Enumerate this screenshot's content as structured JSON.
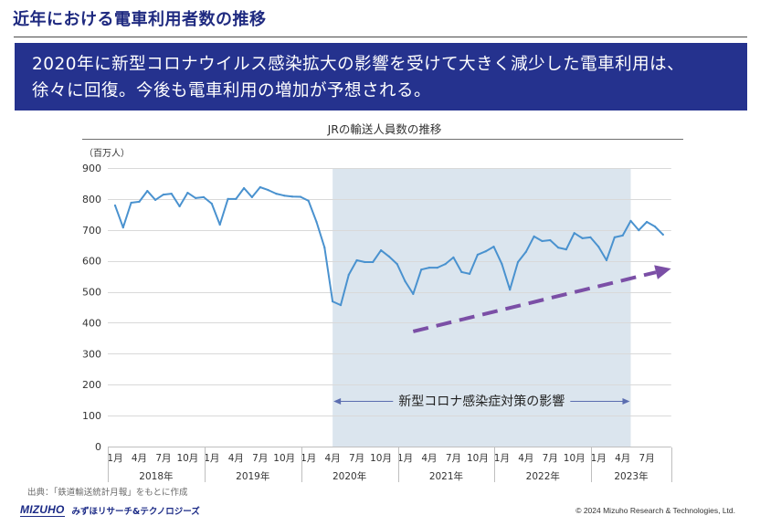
{
  "slide": {
    "title": "近年における電車利用者数の推移",
    "banner_lines": [
      "2020年に新型コロナウイルス感染拡大の影響を受けて大きく減少した電車利用は、",
      "徐々に回復。今後も電車利用の増加が予想される。"
    ],
    "source": "出典：「鉄道輸送統計月報」をもとに作成",
    "logo_mark": "MIZUHO",
    "logo_text": "みずほリサーチ&テクノロジーズ",
    "copyright": "© 2024 Mizuho Research & Technologies, Ltd."
  },
  "colors": {
    "title": "#1f2a80",
    "banner_bg": "#25328e",
    "banner_text": "#ffffff",
    "series_line": "#4a92cf",
    "shade": "#dbe5ee",
    "trend_arrow": "#7b4fa6",
    "annotation_arrow": "#5b6db0",
    "logo": "#1b2a86"
  },
  "chart_data": {
    "type": "line",
    "title": "JRの輸送人員数の推移",
    "xlabel": "",
    "ylabel": "（百万人）",
    "ylim": [
      0,
      900
    ],
    "yticks": [
      0,
      100,
      200,
      300,
      400,
      500,
      600,
      700,
      800,
      900
    ],
    "grid": true,
    "x": [
      "2018-01",
      "2018-02",
      "2018-03",
      "2018-04",
      "2018-05",
      "2018-06",
      "2018-07",
      "2018-08",
      "2018-09",
      "2018-10",
      "2018-11",
      "2018-12",
      "2019-01",
      "2019-02",
      "2019-03",
      "2019-04",
      "2019-05",
      "2019-06",
      "2019-07",
      "2019-08",
      "2019-09",
      "2019-10",
      "2019-11",
      "2019-12",
      "2020-01",
      "2020-02",
      "2020-03",
      "2020-04",
      "2020-05",
      "2020-06",
      "2020-07",
      "2020-08",
      "2020-09",
      "2020-10",
      "2020-11",
      "2020-12",
      "2021-01",
      "2021-02",
      "2021-03",
      "2021-04",
      "2021-05",
      "2021-06",
      "2021-07",
      "2021-08",
      "2021-09",
      "2021-10",
      "2021-11",
      "2021-12",
      "2022-01",
      "2022-02",
      "2022-03",
      "2022-04",
      "2022-05",
      "2022-06",
      "2022-07",
      "2022-08",
      "2022-09",
      "2022-10",
      "2022-11",
      "2022-12",
      "2023-01",
      "2023-02",
      "2023-03",
      "2023-04",
      "2023-05",
      "2023-06",
      "2023-07",
      "2023-08",
      "2023-09"
    ],
    "series": [
      {
        "values": [
          779,
          708,
          788,
          791,
          826,
          797,
          814,
          817,
          776,
          820,
          803,
          806,
          785,
          717,
          800,
          800,
          835,
          806,
          838,
          829,
          817,
          811,
          808,
          807,
          794,
          726,
          643,
          469,
          457,
          555,
          602,
          596,
          596,
          634,
          614,
          590,
          534,
          493,
          572,
          578,
          578,
          590,
          611,
          564,
          558,
          620,
          631,
          646,
          590,
          507,
          596,
          629,
          679,
          664,
          667,
          643,
          637,
          690,
          673,
          676,
          646,
          602,
          676,
          682,
          729,
          699,
          726,
          711,
          685
        ]
      }
    ],
    "x_tick_labels": [
      {
        "x": "2018-01",
        "label": "1月"
      },
      {
        "x": "2018-04",
        "label": "4月"
      },
      {
        "x": "2018-07",
        "label": "7月"
      },
      {
        "x": "2018-10",
        "label": "10月"
      },
      {
        "x": "2019-01",
        "label": "1月"
      },
      {
        "x": "2019-04",
        "label": "4月"
      },
      {
        "x": "2019-07",
        "label": "7月"
      },
      {
        "x": "2019-10",
        "label": "10月"
      },
      {
        "x": "2020-01",
        "label": "1月"
      },
      {
        "x": "2020-04",
        "label": "4月"
      },
      {
        "x": "2020-07",
        "label": "7月"
      },
      {
        "x": "2020-10",
        "label": "10月"
      },
      {
        "x": "2021-01",
        "label": "1月"
      },
      {
        "x": "2021-04",
        "label": "4月"
      },
      {
        "x": "2021-07",
        "label": "7月"
      },
      {
        "x": "2021-10",
        "label": "10月"
      },
      {
        "x": "2022-01",
        "label": "1月"
      },
      {
        "x": "2022-04",
        "label": "4月"
      },
      {
        "x": "2022-07",
        "label": "7月"
      },
      {
        "x": "2022-10",
        "label": "10月"
      },
      {
        "x": "2023-01",
        "label": "1月"
      },
      {
        "x": "2023-04",
        "label": "4月"
      },
      {
        "x": "2023-07",
        "label": "7月"
      }
    ],
    "x_group_labels": [
      {
        "label": "2018年",
        "start": "2018-01"
      },
      {
        "label": "2019年",
        "start": "2019-01"
      },
      {
        "label": "2020年",
        "start": "2020-01"
      },
      {
        "label": "2021年",
        "start": "2021-01"
      },
      {
        "label": "2022年",
        "start": "2022-01"
      },
      {
        "label": "2023年",
        "start": "2023-01"
      }
    ],
    "shaded_period": {
      "start": "2020-04",
      "end": "2023-05",
      "label": "新型コロナ感染症対策の影響"
    },
    "trend_arrow": {
      "x_from": "2021-02",
      "y_from": 372,
      "x_to": "2023-10",
      "y_to": 575
    }
  }
}
